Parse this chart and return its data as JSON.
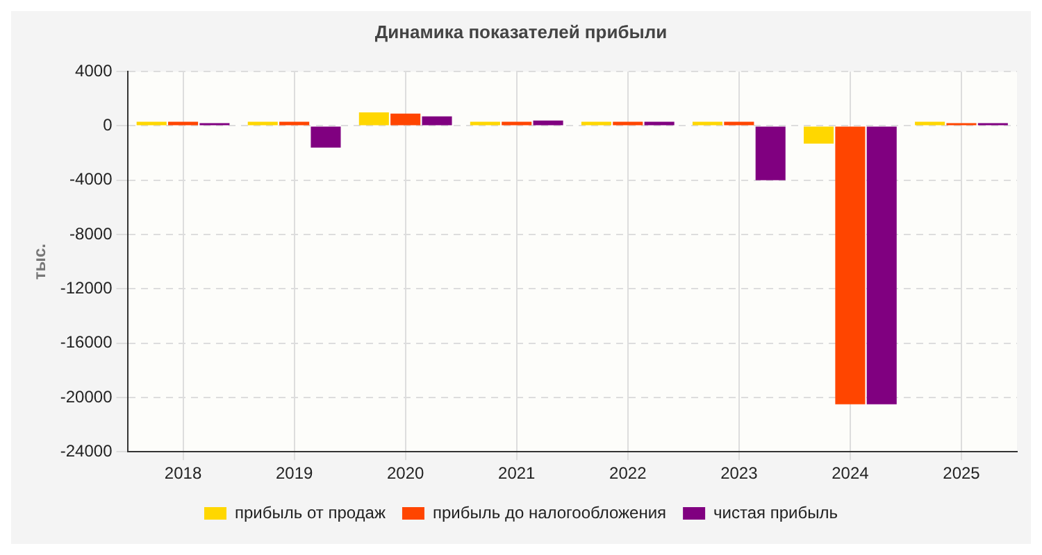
{
  "chart_data": {
    "type": "bar",
    "title": "Динамика показателей прибыли",
    "ylabel": "тыс.",
    "categories": [
      "2018",
      "2019",
      "2020",
      "2021",
      "2022",
      "2023",
      "2024",
      "2025"
    ],
    "series": [
      {
        "name": "прибыль от продаж",
        "color": "#ffd700",
        "values": [
          300,
          300,
          1000,
          300,
          300,
          300,
          -1300,
          300
        ]
      },
      {
        "name": "прибыль до налогообложения",
        "color": "#ff4500",
        "values": [
          300,
          300,
          900,
          300,
          300,
          300,
          -20500,
          200
        ]
      },
      {
        "name": "чистая прибыль",
        "color": "#800080",
        "values": [
          200,
          -1600,
          700,
          400,
          300,
          -4000,
          -20500,
          200
        ]
      }
    ],
    "ylim": [
      -24000,
      4000
    ],
    "yticks": [
      -24000,
      -20000,
      -16000,
      -12000,
      -8000,
      -4000,
      0,
      4000
    ],
    "grid": true,
    "legend": "bottom"
  }
}
